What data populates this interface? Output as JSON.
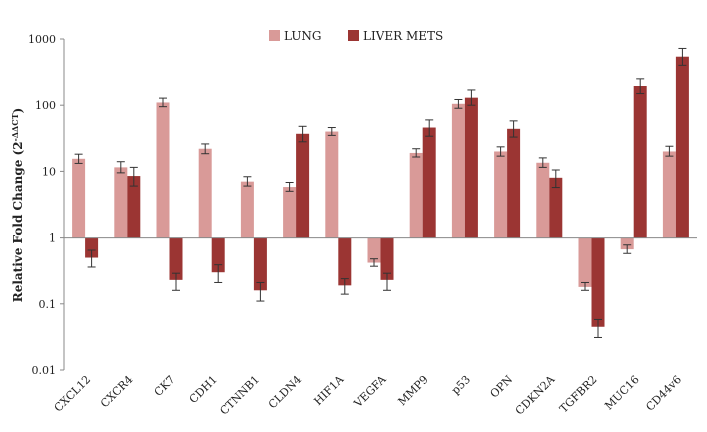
{
  "chart_data": {
    "type": "bar",
    "y_scale": "log",
    "ylim": [
      0.01,
      1000
    ],
    "y_ticks": [
      "0.01",
      "0.1",
      "1",
      "10",
      "100",
      "1000"
    ],
    "ylabel": "Relative Fold Change (2",
    "ylabel_sup": "-ΔΔCT",
    "ylabel_close": ")",
    "legend_position": "top-center",
    "colors": {
      "LUNG": "#d99a98",
      "LIVER METS": "#9b3533"
    },
    "categories": [
      "CXCL12",
      "CXCR4",
      "CK7",
      "CDH1",
      "CTNNB1",
      "CLDN4",
      "HIF1A",
      "VEGFA",
      "MMP9",
      "p53",
      "OPN",
      "CDKN2A",
      "TGFBR2",
      "MUC16",
      "CD44v6"
    ],
    "series": [
      {
        "name": "LUNG",
        "values": [
          15.5,
          11.5,
          110,
          22,
          7,
          5.8,
          40,
          0.42,
          19,
          105,
          20,
          13.5,
          0.18,
          0.67,
          20
        ],
        "err_low": [
          13.2,
          9.5,
          95,
          18.5,
          6,
          5.0,
          35,
          0.37,
          16.5,
          90,
          17,
          11.5,
          0.16,
          0.58,
          17
        ],
        "err_high": [
          18.2,
          14.0,
          128,
          26,
          8.3,
          6.8,
          46,
          0.48,
          22,
          122,
          23.5,
          16,
          0.21,
          0.78,
          24
        ]
      },
      {
        "name": "LIVER METS",
        "values": [
          0.5,
          8.5,
          0.23,
          0.3,
          0.16,
          37,
          0.19,
          0.23,
          46,
          130,
          44,
          8,
          0.045,
          195,
          540
        ],
        "err_low": [
          0.36,
          6.0,
          0.16,
          0.21,
          0.11,
          28,
          0.14,
          0.16,
          34,
          100,
          33,
          5.7,
          0.031,
          150,
          400
        ],
        "err_high": [
          0.65,
          11.5,
          0.29,
          0.39,
          0.21,
          48,
          0.24,
          0.29,
          60,
          170,
          58,
          10.5,
          0.058,
          250,
          720
        ]
      }
    ]
  }
}
